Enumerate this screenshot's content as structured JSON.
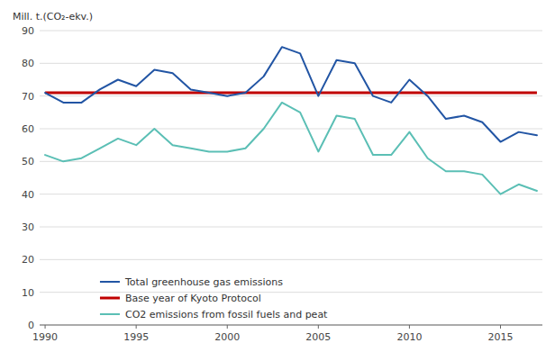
{
  "chart_data": {
    "type": "line",
    "ylabel": "Mill. t.(CO₂-ekv.)",
    "x": [
      1990,
      1991,
      1992,
      1993,
      1994,
      1995,
      1996,
      1997,
      1998,
      1999,
      2000,
      2001,
      2002,
      2003,
      2004,
      2005,
      2006,
      2007,
      2008,
      2009,
      2010,
      2011,
      2012,
      2013,
      2014,
      2015,
      2016,
      2017
    ],
    "series": [
      {
        "name": "Total greenhouse gas emissions",
        "color": "#2255a4",
        "values": [
          71,
          68,
          68,
          72,
          75,
          73,
          78,
          77,
          72,
          71,
          70,
          71,
          76,
          85,
          83,
          70,
          81,
          80,
          70,
          68,
          75,
          70,
          63,
          64,
          62,
          56,
          59,
          58
        ]
      },
      {
        "name": "Base year of Kyoto Protocol",
        "color": "#c00000",
        "type": "hline",
        "value": 71
      },
      {
        "name": "CO2 emissions from fossil fuels and peat",
        "color": "#5bbfb5",
        "values": [
          52,
          50,
          51,
          54,
          57,
          55,
          60,
          55,
          54,
          53,
          53,
          54,
          60,
          68,
          65,
          53,
          64,
          63,
          52,
          52,
          59,
          51,
          47,
          47,
          46,
          40,
          43,
          41
        ]
      }
    ],
    "xlim": [
      1989.7,
      2017.3
    ],
    "xticks": [
      1990,
      1995,
      2000,
      2005,
      2010,
      2015
    ],
    "ylim": [
      0,
      90
    ],
    "yticks": [
      0,
      10,
      20,
      30,
      40,
      50,
      60,
      70,
      80,
      90
    ],
    "grid": true,
    "legend": "lower left"
  }
}
